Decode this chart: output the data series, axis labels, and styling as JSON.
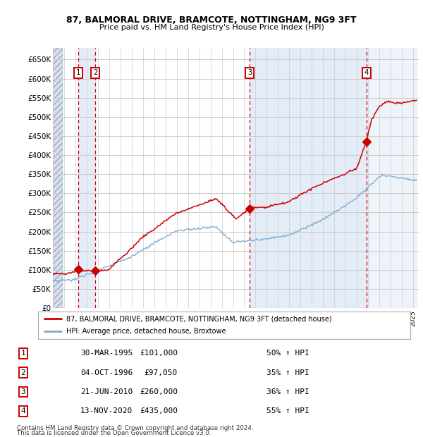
{
  "title1": "87, BALMORAL DRIVE, BRAMCOTE, NOTTINGHAM, NG9 3FT",
  "title2": "Price paid vs. HM Land Registry's House Price Index (HPI)",
  "ylabel_ticks": [
    0,
    50000,
    100000,
    150000,
    200000,
    250000,
    300000,
    350000,
    400000,
    450000,
    500000,
    550000,
    600000,
    650000
  ],
  "ylim": [
    0,
    680000
  ],
  "xlim_start": 1993.0,
  "xlim_end": 2025.5,
  "sale_dates": [
    1995.25,
    1996.75,
    2010.47,
    2020.87
  ],
  "sale_prices": [
    101000,
    97050,
    260000,
    435000
  ],
  "sale_labels": [
    "1",
    "2",
    "3",
    "4"
  ],
  "sale_label_dates": [
    "30-MAR-1995",
    "04-OCT-1996",
    "21-JUN-2010",
    "13-NOV-2020"
  ],
  "sale_label_prices": [
    "£101,000",
    "£97,050",
    "£260,000",
    "£435,000"
  ],
  "sale_label_hpi": [
    "50% ↑ HPI",
    "35% ↑ HPI",
    "36% ↑ HPI",
    "55% ↑ HPI"
  ],
  "red_color": "#cc0000",
  "blue_color": "#7aa8cc",
  "shade_color": "#dde8f5",
  "hatch_color": "#c8d4e4",
  "grid_color": "#cccccc",
  "dashed_line_color": "#cc0000",
  "bg_color": "#ffffff",
  "legend_line1": "87, BALMORAL DRIVE, BRAMCOTE, NOTTINGHAM, NG9 3FT (detached house)",
  "legend_line2": "HPI: Average price, detached house, Broxtowe",
  "footnote1": "Contains HM Land Registry data © Crown copyright and database right 2024.",
  "footnote2": "This data is licensed under the Open Government Licence v3.0."
}
